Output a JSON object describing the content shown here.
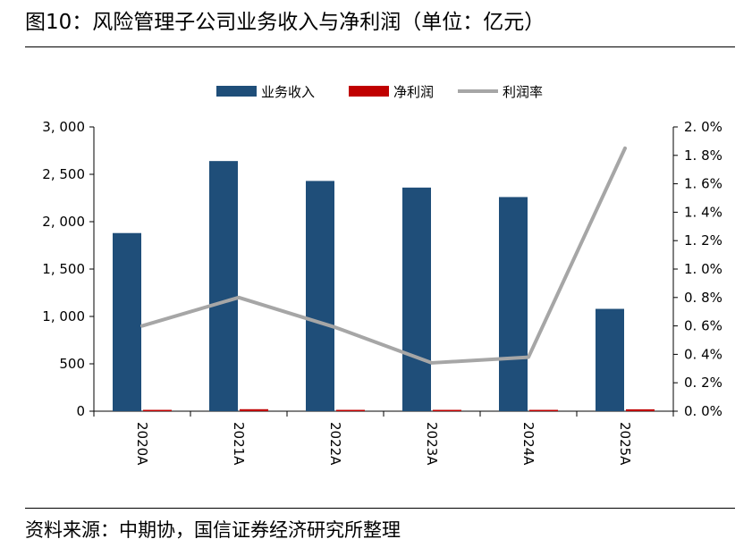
{
  "header": {
    "title": "图10：风险管理子公司业务收入与净利润（单位：亿元）"
  },
  "footer": {
    "source": "资料来源：中期协，国信证券经济研究所整理"
  },
  "chart_data": {
    "type": "bar",
    "categories": [
      "2020A",
      "2021A",
      "2022A",
      "2023A",
      "2024A",
      "2025A"
    ],
    "series": [
      {
        "name": "业务收入",
        "kind": "bar",
        "axis": "left",
        "color": "#1f4e79",
        "values": [
          1880,
          2640,
          2430,
          2360,
          2260,
          1080
        ]
      },
      {
        "name": "净利润",
        "kind": "bar",
        "axis": "left",
        "color": "#c00000",
        "values": [
          11,
          21,
          14,
          8,
          9,
          20
        ]
      },
      {
        "name": "利润率",
        "kind": "line",
        "axis": "right",
        "color": "#a6a6a6",
        "values": [
          0.6,
          0.8,
          0.59,
          0.34,
          0.38,
          1.85
        ]
      }
    ],
    "left_axis": {
      "ylim": [
        0,
        3000
      ],
      "ticks": [
        0,
        500,
        1000,
        1500,
        2000,
        2500,
        3000
      ],
      "tick_labels": [
        "0",
        "500",
        "1, 000",
        "1, 500",
        "2, 000",
        "2, 500",
        "3, 000"
      ]
    },
    "right_axis": {
      "ylim": [
        0,
        2.0
      ],
      "ticks": [
        0,
        0.2,
        0.4,
        0.6,
        0.8,
        1.0,
        1.2,
        1.4,
        1.6,
        1.8,
        2.0
      ],
      "tick_labels": [
        "0. 0%",
        "0. 2%",
        "0. 4%",
        "0. 6%",
        "0. 8%",
        "1. 0%",
        "1. 2%",
        "1. 4%",
        "1. 6%",
        "1. 8%",
        "2. 0%"
      ]
    },
    "legend": {
      "position": "top",
      "items": [
        "业务收入",
        "净利润",
        "利润率"
      ]
    },
    "grid": false
  }
}
